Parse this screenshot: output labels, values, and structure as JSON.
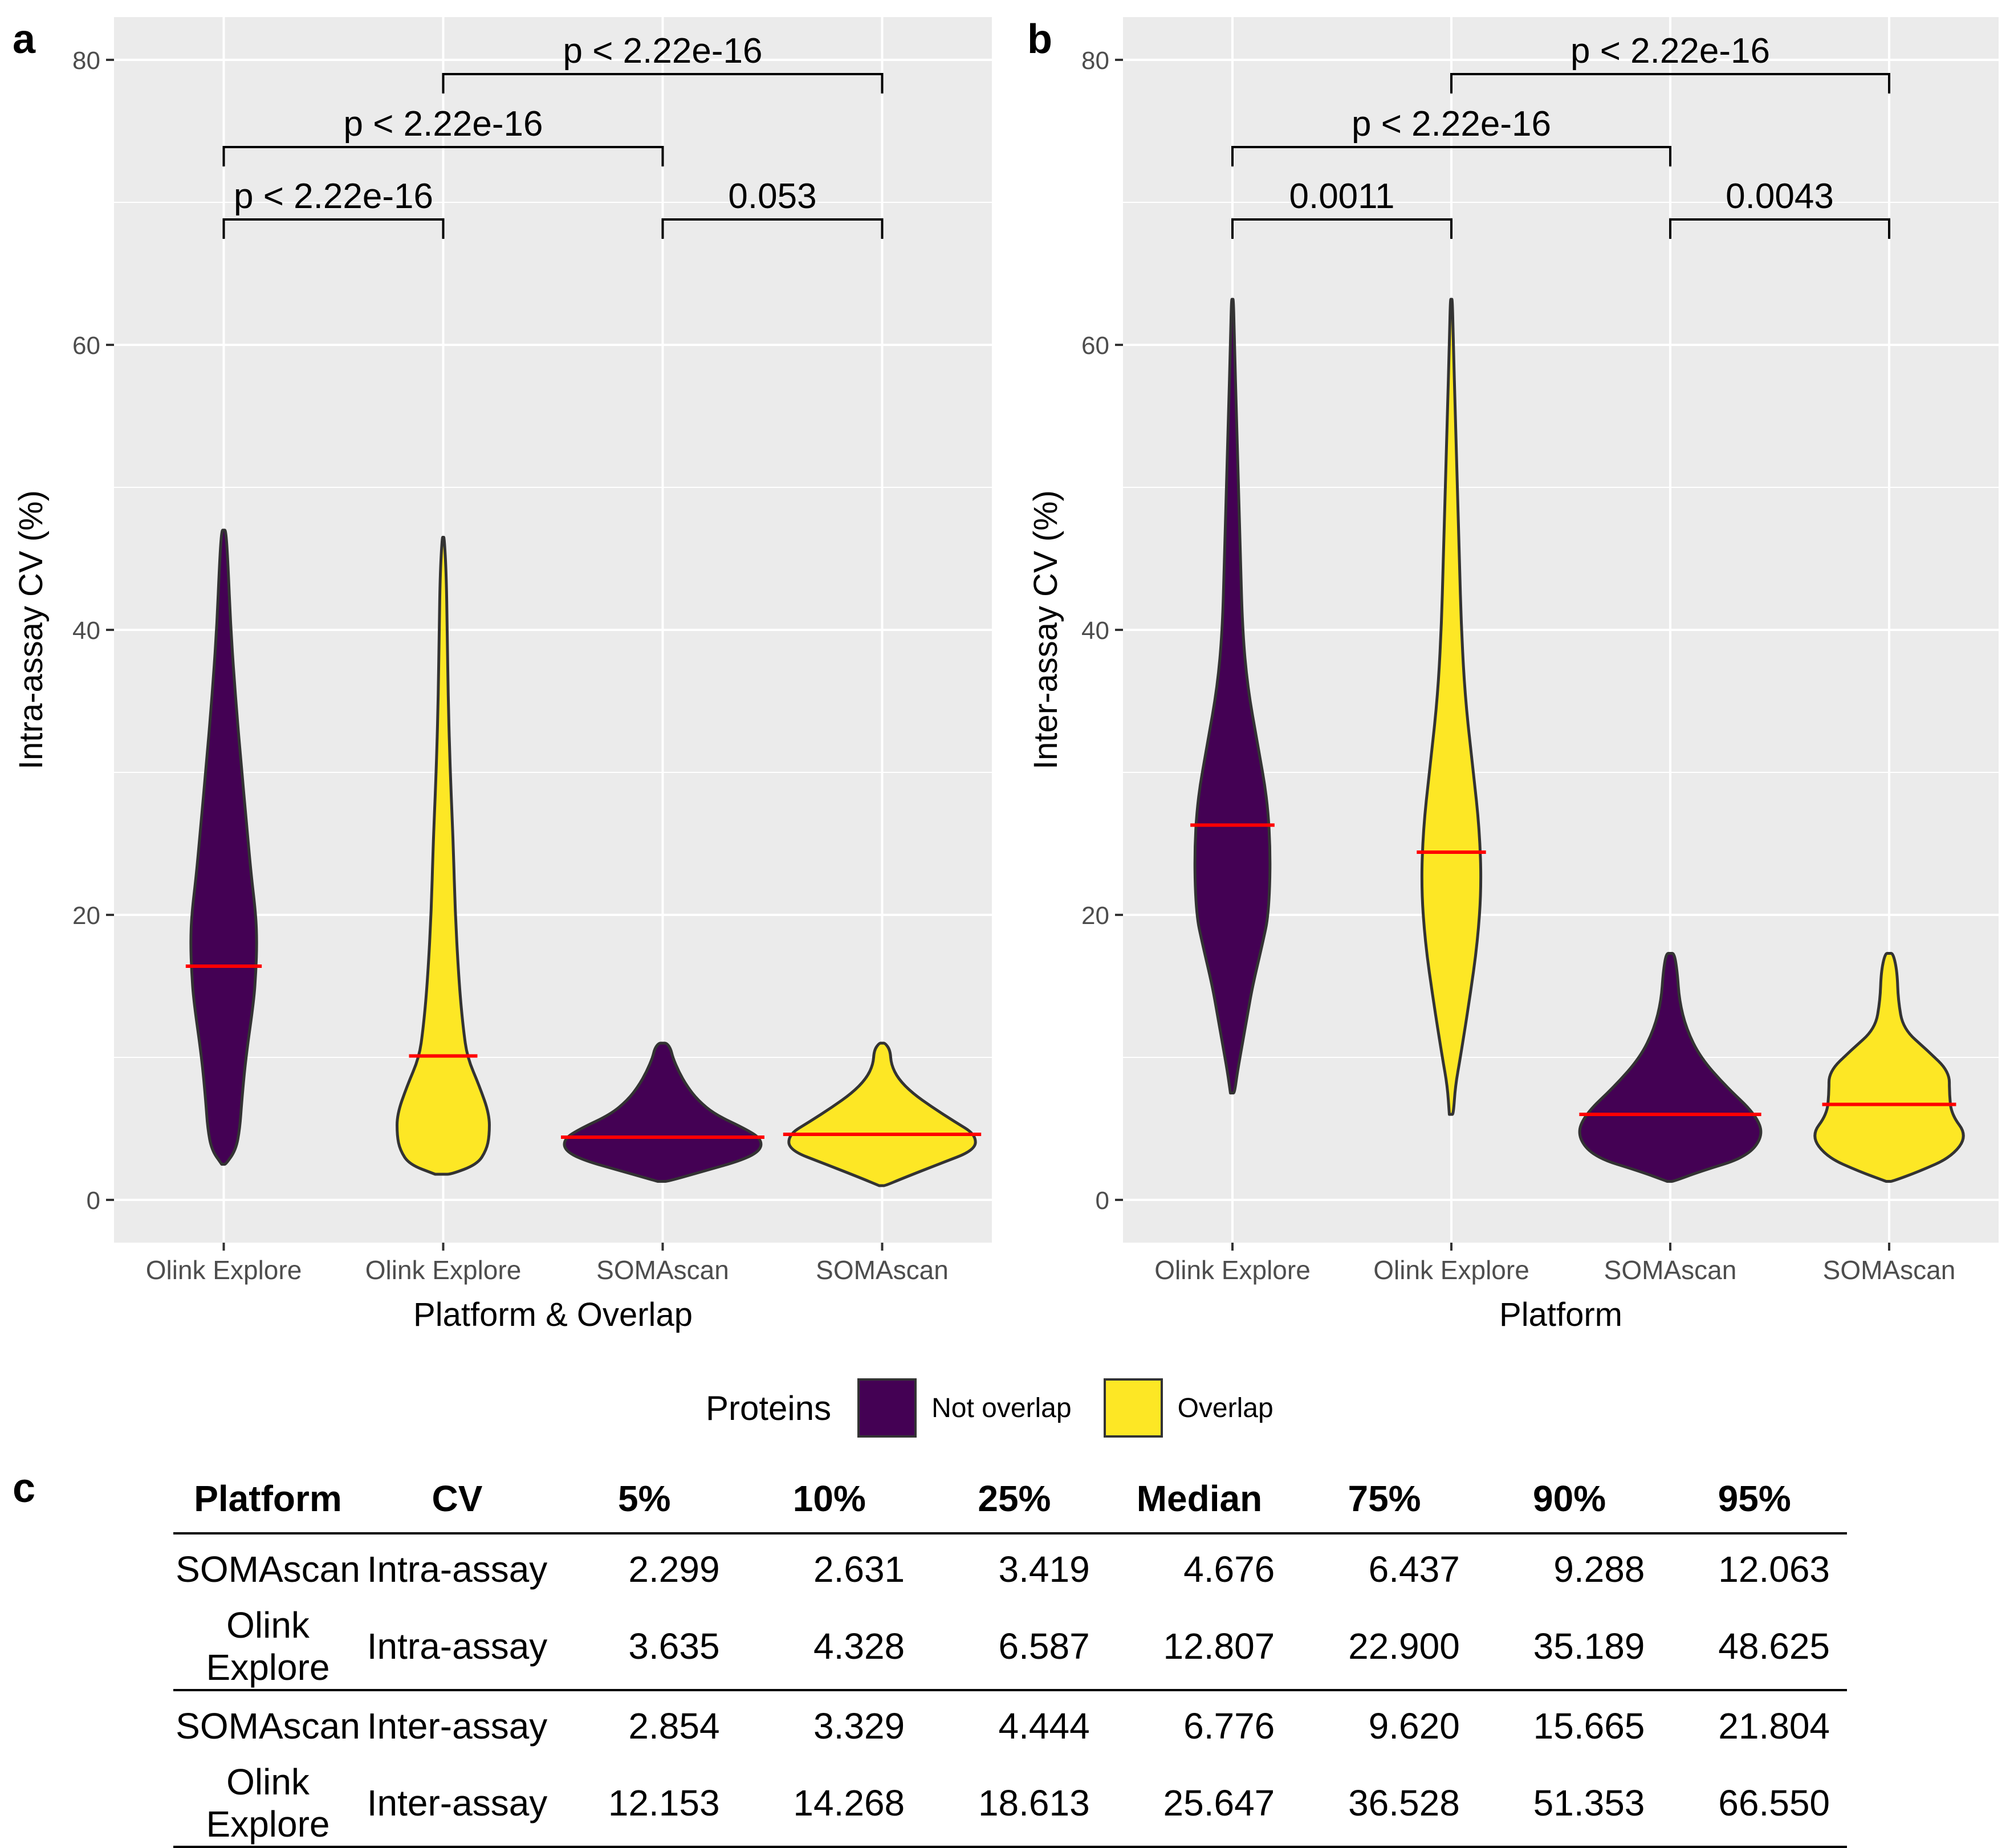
{
  "chart_data": [
    {
      "panel": "a",
      "type": "violin",
      "xlabel": "Platform & Overlap",
      "ylabel": "Intra-assay CV (%)",
      "ylim": [
        -3,
        83
      ],
      "yticks": [
        0,
        20,
        40,
        60,
        80
      ],
      "categories": [
        "Olink Explore",
        "Olink Explore",
        "SOMAscan",
        "SOMAscan"
      ],
      "groups": [
        "Not overlap",
        "Overlap",
        "Not overlap",
        "Overlap"
      ],
      "violins": [
        {
          "min": 2.5,
          "max": 47,
          "median": 16.4,
          "profile": [
            [
              2.5,
              0.02
            ],
            [
              3.5,
              0.12
            ],
            [
              5,
              0.16
            ],
            [
              7,
              0.18
            ],
            [
              10,
              0.22
            ],
            [
              14,
              0.3
            ],
            [
              16,
              0.32
            ],
            [
              18,
              0.33
            ],
            [
              20,
              0.32
            ],
            [
              23,
              0.27
            ],
            [
              27,
              0.22
            ],
            [
              30,
              0.18
            ],
            [
              35,
              0.12
            ],
            [
              40,
              0.07
            ],
            [
              45,
              0.04
            ],
            [
              47,
              0.02
            ]
          ]
        },
        {
          "min": 1.8,
          "max": 46.5,
          "median": 10.1,
          "profile": [
            [
              1.8,
              0.08
            ],
            [
              2.5,
              0.34
            ],
            [
              3.5,
              0.43
            ],
            [
              4.5,
              0.46
            ],
            [
              6,
              0.46
            ],
            [
              8,
              0.36
            ],
            [
              10,
              0.24
            ],
            [
              12,
              0.2
            ],
            [
              15,
              0.16
            ],
            [
              20,
              0.12
            ],
            [
              25,
              0.1
            ],
            [
              30,
              0.07
            ],
            [
              35,
              0.05
            ],
            [
              40,
              0.04
            ],
            [
              44,
              0.03
            ],
            [
              46.5,
              0.01
            ]
          ]
        },
        {
          "min": 1.3,
          "max": 11,
          "median": 4.4,
          "profile": [
            [
              1.3,
              0.05
            ],
            [
              2,
              0.4
            ],
            [
              2.8,
              0.8
            ],
            [
              3.5,
              0.98
            ],
            [
              4.3,
              0.98
            ],
            [
              5,
              0.82
            ],
            [
              6,
              0.52
            ],
            [
              7,
              0.35
            ],
            [
              8,
              0.24
            ],
            [
              9,
              0.16
            ],
            [
              10,
              0.1
            ],
            [
              10.6,
              0.08
            ],
            [
              11,
              0.04
            ]
          ]
        },
        {
          "min": 1.0,
          "max": 11,
          "median": 4.6,
          "profile": [
            [
              1,
              0.03
            ],
            [
              1.5,
              0.2
            ],
            [
              2.5,
              0.56
            ],
            [
              3.5,
              0.93
            ],
            [
              4.6,
              0.93
            ],
            [
              5.5,
              0.72
            ],
            [
              6.5,
              0.5
            ],
            [
              7.5,
              0.3
            ],
            [
              8.5,
              0.16
            ],
            [
              9.5,
              0.09
            ],
            [
              10.5,
              0.08
            ],
            [
              11,
              0.03
            ]
          ]
        }
      ],
      "comparisons": [
        {
          "from": 1,
          "to": 2,
          "label": "p < 2.22e-16",
          "level": 1
        },
        {
          "from": 3,
          "to": 4,
          "label": "0.053",
          "level": 1
        },
        {
          "from": 1,
          "to": 3,
          "label": "p < 2.22e-16",
          "level": 2
        },
        {
          "from": 2,
          "to": 4,
          "label": "p < 2.22e-16",
          "level": 3
        }
      ]
    },
    {
      "panel": "b",
      "type": "violin",
      "xlabel": "Platform",
      "ylabel": "Inter-assay CV (%)",
      "ylim": [
        -3,
        83
      ],
      "yticks": [
        0,
        20,
        40,
        60,
        80
      ],
      "categories": [
        "Olink Explore",
        "Olink Explore",
        "SOMAscan",
        "SOMAscan"
      ],
      "groups": [
        "Not overlap",
        "Overlap",
        "Not overlap",
        "Overlap"
      ],
      "violins": [
        {
          "min": 7.5,
          "max": 63.2,
          "median": 26.3,
          "profile": [
            [
              7.5,
              0.02
            ],
            [
              9,
              0.05
            ],
            [
              11,
              0.1
            ],
            [
              13,
              0.15
            ],
            [
              15,
              0.2
            ],
            [
              18,
              0.3
            ],
            [
              20,
              0.36
            ],
            [
              24,
              0.38
            ],
            [
              28,
              0.35
            ],
            [
              32,
              0.25
            ],
            [
              36,
              0.15
            ],
            [
              40,
              0.1
            ],
            [
              45,
              0.08
            ],
            [
              50,
              0.06
            ],
            [
              55,
              0.04
            ],
            [
              60,
              0.02
            ],
            [
              63.2,
              0.01
            ]
          ]
        },
        {
          "min": 6,
          "max": 63.2,
          "median": 24.4,
          "profile": [
            [
              6,
              0.02
            ],
            [
              8,
              0.04
            ],
            [
              10,
              0.09
            ],
            [
              14,
              0.18
            ],
            [
              18,
              0.26
            ],
            [
              22,
              0.3
            ],
            [
              26,
              0.28
            ],
            [
              30,
              0.22
            ],
            [
              35,
              0.14
            ],
            [
              40,
              0.1
            ],
            [
              45,
              0.08
            ],
            [
              50,
              0.06
            ],
            [
              55,
              0.04
            ],
            [
              60,
              0.02
            ],
            [
              63.2,
              0.01
            ]
          ]
        },
        {
          "min": 1.3,
          "max": 17.3,
          "median": 6.0,
          "profile": [
            [
              1.3,
              0.03
            ],
            [
              2,
              0.3
            ],
            [
              3,
              0.76
            ],
            [
              4.5,
              0.93
            ],
            [
              6,
              0.85
            ],
            [
              8,
              0.55
            ],
            [
              10,
              0.3
            ],
            [
              12,
              0.16
            ],
            [
              14,
              0.09
            ],
            [
              16,
              0.07
            ],
            [
              17.3,
              0.04
            ]
          ]
        },
        {
          "min": 1.3,
          "max": 17.3,
          "median": 6.7,
          "profile": [
            [
              1.3,
              0.03
            ],
            [
              2,
              0.3
            ],
            [
              3,
              0.62
            ],
            [
              4.5,
              0.78
            ],
            [
              6,
              0.62
            ],
            [
              7.5,
              0.6
            ],
            [
              9,
              0.6
            ],
            [
              10.5,
              0.38
            ],
            [
              12,
              0.14
            ],
            [
              14,
              0.09
            ],
            [
              16,
              0.08
            ],
            [
              17.3,
              0.04
            ]
          ]
        }
      ],
      "comparisons": [
        {
          "from": 1,
          "to": 2,
          "label": "0.0011",
          "level": 1
        },
        {
          "from": 3,
          "to": 4,
          "label": "0.0043",
          "level": 1
        },
        {
          "from": 1,
          "to": 3,
          "label": "p < 2.22e-16",
          "level": 2
        },
        {
          "from": 2,
          "to": 4,
          "label": "p < 2.22e-16",
          "level": 3
        }
      ]
    }
  ],
  "panel_labels": {
    "a": "a",
    "b": "b",
    "c": "c"
  },
  "colors": {
    "not_overlap": "#440154",
    "overlap": "#FDE725",
    "median_line": "#FF0000",
    "panel_bg": "#EBEBEB",
    "grid": "#FFFFFF",
    "outline": "#333333"
  },
  "legend": {
    "title": "Proteins",
    "items": [
      {
        "label": "Not overlap",
        "color": "#440154"
      },
      {
        "label": "Overlap",
        "color": "#FDE725"
      }
    ]
  },
  "table": {
    "headers": [
      "Platform",
      "CV",
      "5%",
      "10%",
      "25%",
      "Median",
      "75%",
      "90%",
      "95%"
    ],
    "rows": [
      [
        "SOMAscan",
        "Intra-assay",
        "2.299",
        "2.631",
        "3.419",
        "4.676",
        "6.437",
        "9.288",
        "12.063"
      ],
      [
        "Olink Explore",
        "Intra-assay",
        "3.635",
        "4.328",
        "6.587",
        "12.807",
        "22.900",
        "35.189",
        "48.625"
      ],
      [
        "SOMAscan",
        "Inter-assay",
        "2.854",
        "3.329",
        "4.444",
        "6.776",
        "9.620",
        "15.665",
        "21.804"
      ],
      [
        "Olink Explore",
        "Inter-assay",
        "12.153",
        "14.268",
        "18.613",
        "25.647",
        "36.528",
        "51.353",
        "66.550"
      ]
    ]
  }
}
